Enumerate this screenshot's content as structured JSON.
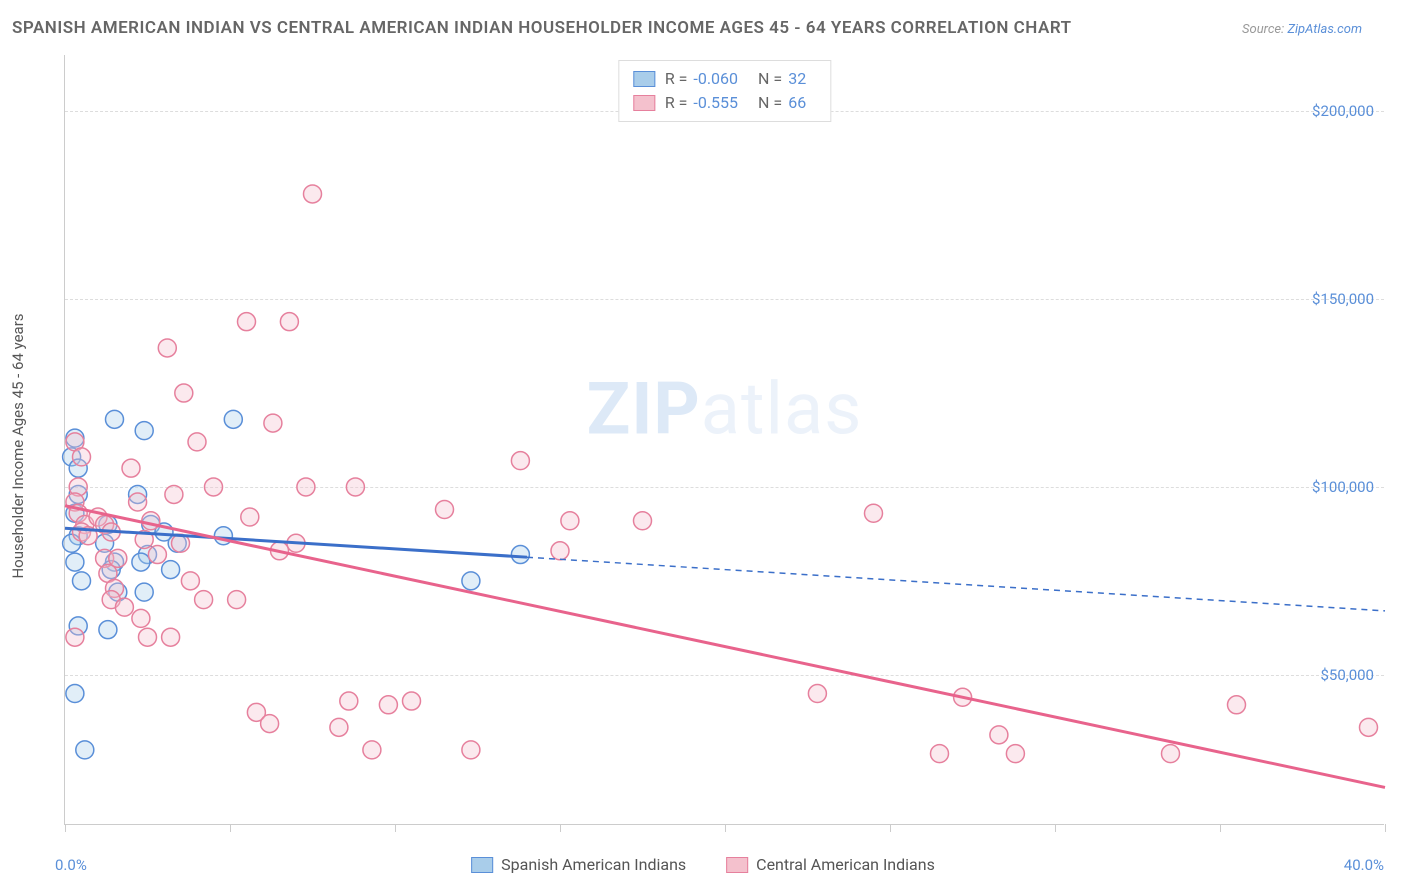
{
  "title": "SPANISH AMERICAN INDIAN VS CENTRAL AMERICAN INDIAN HOUSEHOLDER INCOME AGES 45 - 64 YEARS CORRELATION CHART",
  "source_prefix": "Source: ",
  "source_link": "ZipAtlas.com",
  "watermark_a": "ZIP",
  "watermark_b": "atlas",
  "chart": {
    "type": "scatter",
    "y_axis_title": "Householder Income Ages 45 - 64 years",
    "xlim": [
      0,
      40
    ],
    "ylim": [
      10000,
      215000
    ],
    "x_label_min": "0.0%",
    "x_label_max": "40.0%",
    "x_ticks": [
      0,
      5,
      10,
      15,
      20,
      25,
      30,
      35,
      40
    ],
    "y_gridlines": [
      50000,
      100000,
      150000,
      200000
    ],
    "y_tick_labels": [
      "$50,000",
      "$100,000",
      "$150,000",
      "$200,000"
    ],
    "background_color": "#ffffff",
    "grid_color": "#dddddd",
    "axis_color": "#cccccc",
    "tick_label_color": "#5a8fd8",
    "marker_radius": 9,
    "marker_opacity": 0.35,
    "line_width": 3,
    "dash_pattern": "6,5",
    "series": [
      {
        "name": "Spanish American Indians",
        "color_fill": "#a9cdea",
        "color_stroke": "#5a8fd8",
        "line_color": "#3b6fc9",
        "r_value": "-0.060",
        "n_value": "32",
        "trend": {
          "x1": 0,
          "y1": 89000,
          "x2": 40,
          "y2": 67000,
          "solid_until_x": 14
        },
        "points": [
          [
            0.3,
            113000
          ],
          [
            0.2,
            108000
          ],
          [
            0.4,
            105000
          ],
          [
            0.4,
            98000
          ],
          [
            0.3,
            93000
          ],
          [
            0.4,
            87000
          ],
          [
            0.2,
            85000
          ],
          [
            0.3,
            80000
          ],
          [
            0.5,
            75000
          ],
          [
            0.4,
            63000
          ],
          [
            0.3,
            45000
          ],
          [
            0.6,
            30000
          ],
          [
            1.5,
            118000
          ],
          [
            1.3,
            90000
          ],
          [
            1.2,
            85000
          ],
          [
            1.5,
            80000
          ],
          [
            1.4,
            78000
          ],
          [
            1.6,
            72000
          ],
          [
            1.3,
            62000
          ],
          [
            2.4,
            115000
          ],
          [
            2.2,
            98000
          ],
          [
            2.6,
            90000
          ],
          [
            2.5,
            82000
          ],
          [
            2.3,
            80000
          ],
          [
            2.4,
            72000
          ],
          [
            3.0,
            88000
          ],
          [
            3.2,
            78000
          ],
          [
            3.4,
            85000
          ],
          [
            5.1,
            118000
          ],
          [
            4.8,
            87000
          ],
          [
            12.3,
            75000
          ],
          [
            13.8,
            82000
          ]
        ]
      },
      {
        "name": "Central American Indians",
        "color_fill": "#f4c1cd",
        "color_stroke": "#e6809d",
        "line_color": "#e8638c",
        "r_value": "-0.555",
        "n_value": "66",
        "trend": {
          "x1": 0,
          "y1": 95000,
          "x2": 40,
          "y2": 20000,
          "solid_until_x": 40
        },
        "points": [
          [
            0.3,
            112000
          ],
          [
            0.5,
            108000
          ],
          [
            0.4,
            100000
          ],
          [
            0.3,
            96000
          ],
          [
            0.4,
            93000
          ],
          [
            0.6,
            90000
          ],
          [
            0.5,
            88000
          ],
          [
            0.7,
            87000
          ],
          [
            0.3,
            60000
          ],
          [
            1.0,
            92000
          ],
          [
            1.2,
            90000
          ],
          [
            1.4,
            88000
          ],
          [
            1.2,
            81000
          ],
          [
            1.6,
            81000
          ],
          [
            1.3,
            77000
          ],
          [
            1.5,
            73000
          ],
          [
            1.4,
            70000
          ],
          [
            1.8,
            68000
          ],
          [
            2.0,
            105000
          ],
          [
            2.2,
            96000
          ],
          [
            2.6,
            91000
          ],
          [
            2.4,
            86000
          ],
          [
            2.8,
            82000
          ],
          [
            2.3,
            65000
          ],
          [
            2.5,
            60000
          ],
          [
            3.1,
            137000
          ],
          [
            3.6,
            125000
          ],
          [
            3.3,
            98000
          ],
          [
            3.5,
            85000
          ],
          [
            3.8,
            75000
          ],
          [
            3.2,
            60000
          ],
          [
            4.0,
            112000
          ],
          [
            4.5,
            100000
          ],
          [
            4.2,
            70000
          ],
          [
            5.5,
            144000
          ],
          [
            5.6,
            92000
          ],
          [
            5.2,
            70000
          ],
          [
            5.8,
            40000
          ],
          [
            6.3,
            117000
          ],
          [
            6.8,
            144000
          ],
          [
            6.5,
            83000
          ],
          [
            6.2,
            37000
          ],
          [
            7.5,
            178000
          ],
          [
            7.3,
            100000
          ],
          [
            7.0,
            85000
          ],
          [
            8.8,
            100000
          ],
          [
            8.6,
            43000
          ],
          [
            8.3,
            36000
          ],
          [
            9.3,
            30000
          ],
          [
            9.8,
            42000
          ],
          [
            10.5,
            43000
          ],
          [
            11.5,
            94000
          ],
          [
            12.3,
            30000
          ],
          [
            13.8,
            107000
          ],
          [
            15.0,
            83000
          ],
          [
            15.3,
            91000
          ],
          [
            17.5,
            91000
          ],
          [
            22.8,
            45000
          ],
          [
            24.5,
            93000
          ],
          [
            26.5,
            29000
          ],
          [
            27.2,
            44000
          ],
          [
            28.3,
            34000
          ],
          [
            28.8,
            29000
          ],
          [
            33.5,
            29000
          ],
          [
            35.5,
            42000
          ],
          [
            39.5,
            36000
          ]
        ]
      }
    ]
  },
  "legend_stats_label_r": "R =",
  "legend_stats_label_n": "N =",
  "title_fontsize": 17,
  "label_fontsize": 15
}
